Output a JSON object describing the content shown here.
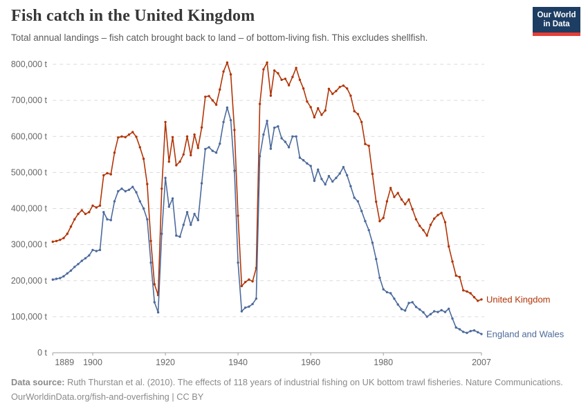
{
  "header": {
    "title": "Fish catch in the United Kingdom",
    "subtitle": "Total annual landings – fish catch brought back to land – of bottom-living fish. This excludes shellfish.",
    "logo": {
      "line1": "Our World",
      "line2": "in Data"
    }
  },
  "footer": {
    "source_label": "Data source:",
    "source_text": "Ruth Thurstan et al. (2010). The effects of 118 years of industrial fishing on UK bottom trawl fisheries. Nature Communications.",
    "link_line": "OurWorldinData.org/fish-and-overfishing | CC BY"
  },
  "chart_data": {
    "type": "line",
    "title": "Fish catch in the United Kingdom",
    "unit": "t",
    "grid": "horizontal-dashed",
    "legend_position": "right-of-line-end",
    "years": {
      "start": 1889,
      "end": 2007,
      "step": 1
    },
    "ylim": [
      0,
      800000
    ],
    "yticks": [
      {
        "value": 0,
        "label": "0 t"
      },
      {
        "value": 100000,
        "label": "100,000 t"
      },
      {
        "value": 200000,
        "label": "200,000 t"
      },
      {
        "value": 300000,
        "label": "300,000 t"
      },
      {
        "value": 400000,
        "label": "400,000 t"
      },
      {
        "value": 500000,
        "label": "500,000 t"
      },
      {
        "value": 600000,
        "label": "600,000 t"
      },
      {
        "value": 700000,
        "label": "700,000 t"
      },
      {
        "value": 800000,
        "label": "800,000 t"
      }
    ],
    "xticks": [
      {
        "value": 1889,
        "label": "1889"
      },
      {
        "value": 1900,
        "label": "1900"
      },
      {
        "value": 1920,
        "label": "1920"
      },
      {
        "value": 1940,
        "label": "1940"
      },
      {
        "value": 1960,
        "label": "1960"
      },
      {
        "value": 1980,
        "label": "1980"
      },
      {
        "value": 2007,
        "label": "2007"
      }
    ],
    "series": [
      {
        "name": "United Kingdom",
        "color": "#B13507",
        "values": [
          308000,
          310000,
          313000,
          318000,
          330000,
          350000,
          370000,
          385000,
          395000,
          385000,
          390000,
          408000,
          403000,
          408000,
          492000,
          498000,
          495000,
          555000,
          597000,
          600000,
          598000,
          605000,
          612000,
          599000,
          570000,
          538000,
          468000,
          310000,
          190000,
          160000,
          455000,
          640000,
          530000,
          598000,
          520000,
          530000,
          550000,
          600000,
          548000,
          605000,
          568000,
          625000,
          710000,
          712000,
          700000,
          688000,
          730000,
          780000,
          805000,
          772000,
          618000,
          380000,
          185000,
          196000,
          203000,
          198000,
          235000,
          690000,
          786000,
          805000,
          713000,
          783000,
          775000,
          757000,
          760000,
          742000,
          765000,
          790000,
          757000,
          733000,
          697000,
          681000,
          653000,
          678000,
          660000,
          672000,
          732000,
          718000,
          726000,
          737000,
          741000,
          733000,
          713000,
          670000,
          662000,
          640000,
          579000,
          574000,
          496000,
          419000,
          365000,
          374000,
          420000,
          457000,
          432000,
          443000,
          425000,
          412000,
          425000,
          398000,
          370000,
          352000,
          340000,
          325000,
          355000,
          372000,
          382000,
          388000,
          362000,
          295000,
          253000,
          214000,
          210000,
          173000,
          170000,
          165000,
          154000,
          144000,
          148000
        ]
      },
      {
        "name": "England and Wales",
        "color": "#4C6A9C",
        "values": [
          203000,
          205000,
          207000,
          212000,
          220000,
          228000,
          238000,
          246000,
          255000,
          262000,
          270000,
          285000,
          282000,
          285000,
          390000,
          370000,
          368000,
          420000,
          448000,
          455000,
          448000,
          452000,
          460000,
          445000,
          420000,
          400000,
          370000,
          250000,
          140000,
          112000,
          330000,
          485000,
          405000,
          428000,
          325000,
          322000,
          355000,
          390000,
          355000,
          385000,
          368000,
          470000,
          565000,
          570000,
          560000,
          555000,
          580000,
          640000,
          680000,
          645000,
          505000,
          250000,
          115000,
          125000,
          128000,
          135000,
          150000,
          545000,
          605000,
          643000,
          566000,
          624000,
          628000,
          595000,
          585000,
          570000,
          600000,
          600000,
          541000,
          534000,
          525000,
          518000,
          477000,
          508000,
          482000,
          467000,
          490000,
          475000,
          485000,
          497000,
          515000,
          492000,
          462000,
          430000,
          420000,
          393000,
          365000,
          340000,
          305000,
          260000,
          208000,
          176000,
          168000,
          165000,
          150000,
          134000,
          121000,
          117000,
          138000,
          140000,
          127000,
          120000,
          112000,
          100000,
          107000,
          115000,
          113000,
          118000,
          113000,
          122000,
          95000,
          70000,
          65000,
          58000,
          55000,
          60000,
          62000,
          57000,
          52000
        ]
      }
    ]
  }
}
